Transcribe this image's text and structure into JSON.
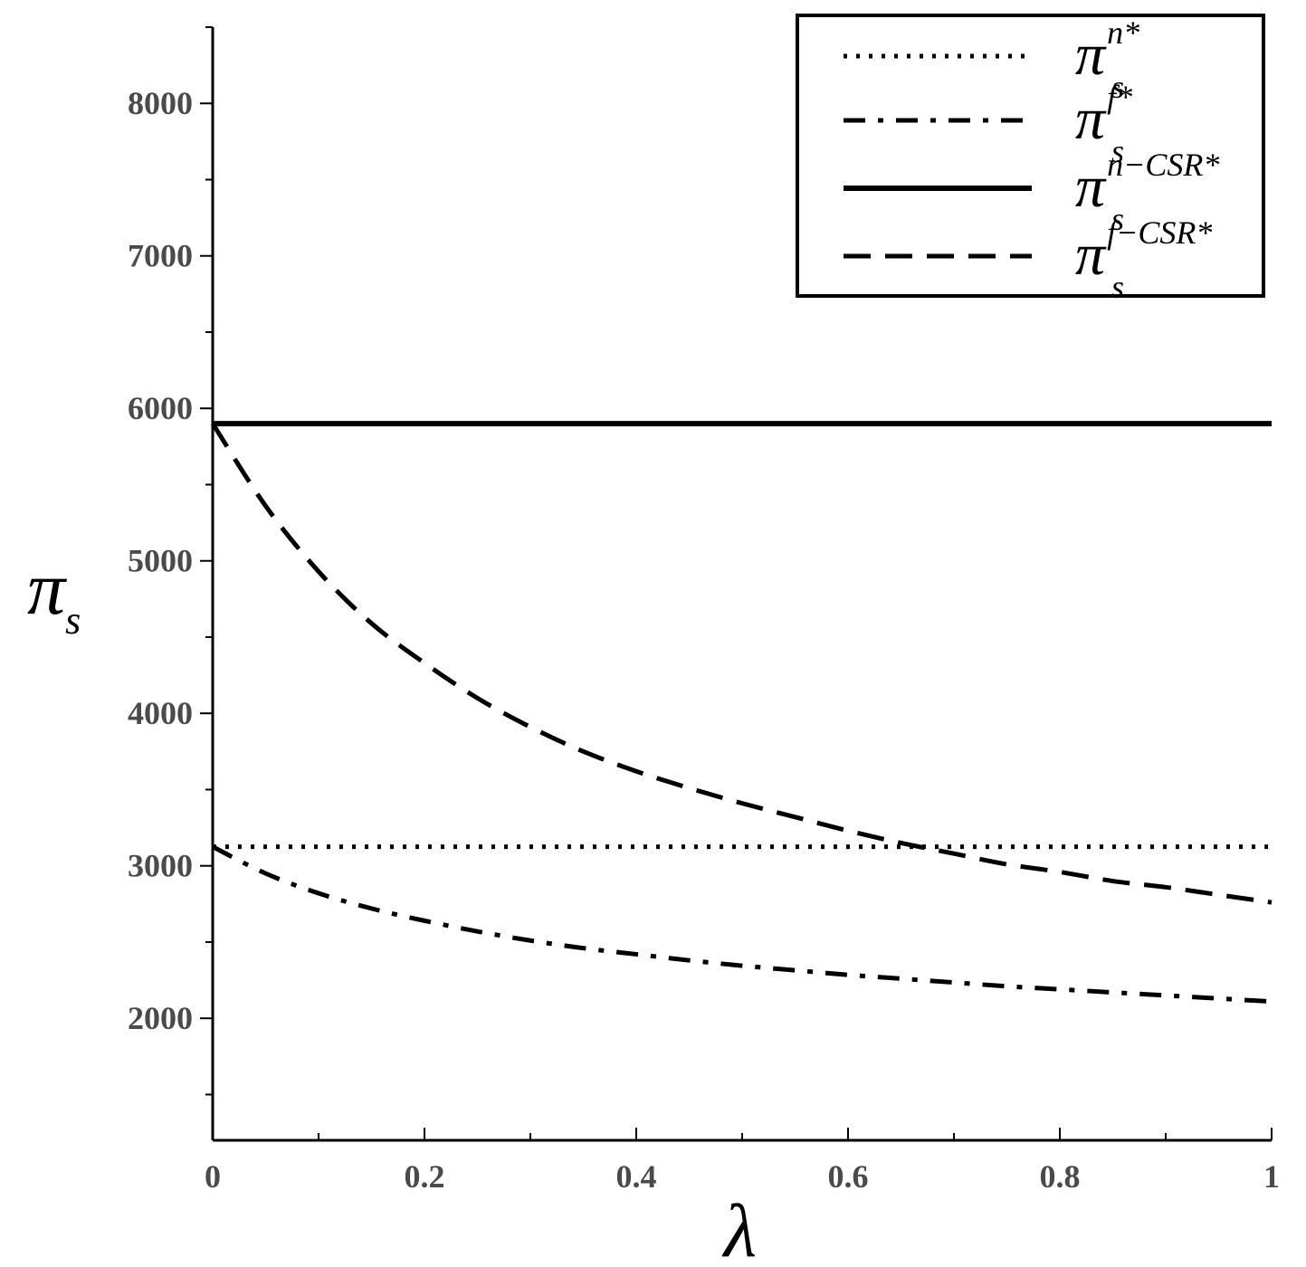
{
  "chart_data": {
    "type": "line",
    "xlabel": "λ",
    "ylabel": {
      "base": "π",
      "sub": "s"
    },
    "xlim": [
      0,
      1
    ],
    "ylim": [
      1200,
      8500
    ],
    "x_ticks": [
      0,
      0.2,
      0.4,
      0.6,
      0.8,
      1
    ],
    "x_tick_labels": [
      "0",
      "0.2",
      "0.4",
      "0.6",
      "0.8",
      "1"
    ],
    "x_minor_step": 0.1,
    "y_ticks": [
      2000,
      3000,
      4000,
      5000,
      6000,
      7000,
      8000
    ],
    "y_tick_labels": [
      "2000",
      "3000",
      "4000",
      "5000",
      "6000",
      "7000",
      "8000"
    ],
    "y_minor_step": 500,
    "grid": false,
    "legend_position": "top-right",
    "x": [
      0,
      0.05,
      0.1,
      0.15,
      0.2,
      0.25,
      0.3,
      0.35,
      0.4,
      0.45,
      0.5,
      0.55,
      0.6,
      0.65,
      0.7,
      0.75,
      0.8,
      0.85,
      0.9,
      0.95,
      1
    ],
    "series": [
      {
        "name": "π_s^{n*}",
        "label": {
          "base": "π",
          "sub": "s",
          "sup": "n*"
        },
        "style": "dotted",
        "values": [
          3125,
          3125,
          3125,
          3125,
          3125,
          3125,
          3125,
          3125,
          3125,
          3125,
          3125,
          3125,
          3125,
          3125,
          3125,
          3125,
          3125,
          3125,
          3125,
          3125,
          3125
        ]
      },
      {
        "name": "π_s^{f*}",
        "label": {
          "base": "π",
          "sub": "s",
          "sup": "f*"
        },
        "style": "dashdot",
        "values": [
          3125,
          2950,
          2820,
          2720,
          2640,
          2570,
          2510,
          2460,
          2420,
          2380,
          2345,
          2315,
          2285,
          2260,
          2235,
          2210,
          2190,
          2170,
          2150,
          2130,
          2110
        ]
      },
      {
        "name": "π_s^{n-CSR*}",
        "label": {
          "base": "π",
          "sub": "s",
          "sup": "n−CSR*"
        },
        "style": "solid",
        "values": [
          5900,
          5900,
          5900,
          5900,
          5900,
          5900,
          5900,
          5900,
          5900,
          5900,
          5900,
          5900,
          5900,
          5900,
          5900,
          5900,
          5900,
          5900,
          5900,
          5900,
          5900
        ]
      },
      {
        "name": "π_s^{f-CSR*}",
        "label": {
          "base": "π",
          "sub": "s",
          "sup": "f−CSR*"
        },
        "style": "dashed",
        "values": [
          5900,
          5360,
          4930,
          4590,
          4330,
          4100,
          3910,
          3750,
          3620,
          3510,
          3410,
          3320,
          3230,
          3150,
          3080,
          3010,
          2960,
          2900,
          2860,
          2810,
          2760
        ]
      }
    ]
  }
}
